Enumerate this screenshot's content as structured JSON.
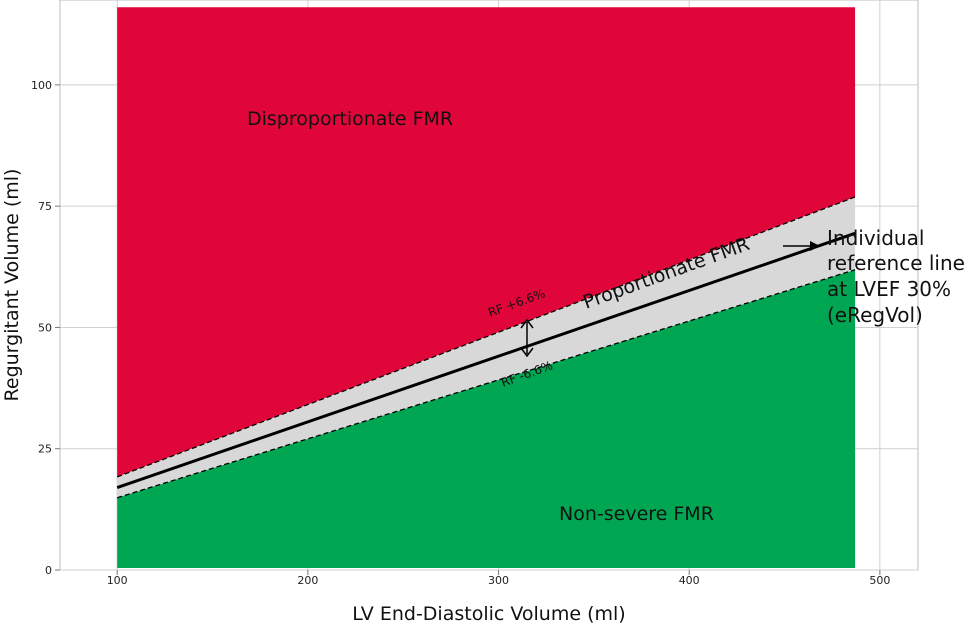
{
  "chart_data": {
    "type": "area",
    "xlabel": "LV End-Diastolic Volume (ml)",
    "ylabel": "Regurgitant Volume (ml)",
    "xlim": [
      70,
      520
    ],
    "ylim": [
      0,
      117.5
    ],
    "x_ticks": [
      100,
      200,
      300,
      400,
      500
    ],
    "y_ticks": [
      0,
      25,
      50,
      75,
      100
    ],
    "grid": true,
    "x_range": [
      100,
      487
    ],
    "ymax_region": 116,
    "series": [
      {
        "name": "RF +6.6%",
        "style": "dashed",
        "x": [
          100,
          487
        ],
        "y": [
          19.2,
          76.9
        ]
      },
      {
        "name": "Individual reference line at LVEF 30% (eRegVol)",
        "style": "solid",
        "x": [
          100,
          487
        ],
        "y": [
          17.0,
          69.4
        ]
      },
      {
        "name": "RF -6.6%",
        "style": "dashed",
        "x": [
          100,
          487
        ],
        "y": [
          14.9,
          61.9
        ]
      }
    ],
    "regions": [
      {
        "name": "Disproportionate FMR",
        "color": "#e0063a"
      },
      {
        "name": "Proportionate FMR",
        "color": "#d8d8d8"
      },
      {
        "name": "Non-severe FMR",
        "color": "#00a651"
      }
    ],
    "annotations": {
      "disproportionate": "Disproportionate FMR",
      "proportionate": "Proportionate FMR",
      "nonsevere": "Non-severe FMR",
      "rf_plus": "RF +6.6%",
      "rf_minus": "RF -6.6%",
      "reference_line": [
        "Individual",
        "reference line",
        "at LVEF 30%",
        "(eRegVol)"
      ]
    }
  }
}
